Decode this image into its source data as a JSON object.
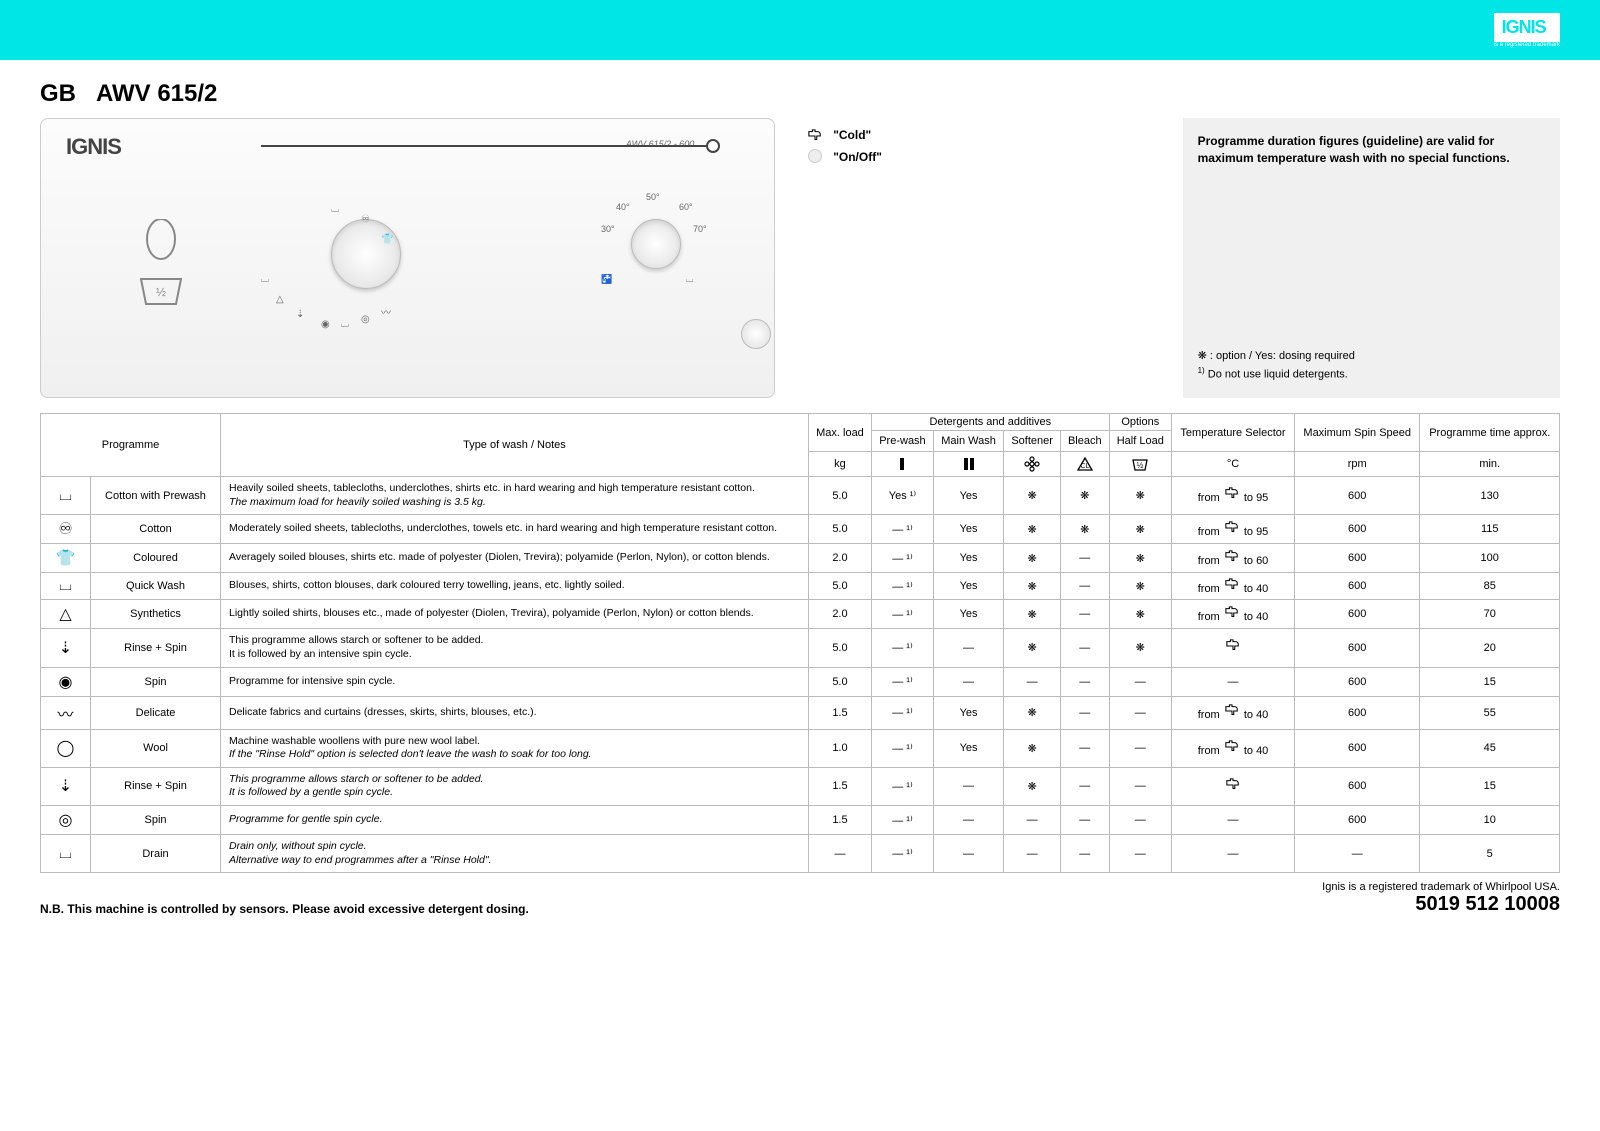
{
  "banner": {
    "logo": "IGNIS",
    "logo_sub": "is a registered trademark"
  },
  "title": {
    "country": "GB",
    "model": "AWV 615/2"
  },
  "panel": {
    "logo": "IGNIS",
    "model_label": "AWV 615/2 - 600",
    "temps": [
      "30°",
      "40°",
      "50°",
      "60°",
      "70°"
    ]
  },
  "legend": {
    "cold": "\"Cold\"",
    "onoff": "\"On/Off\""
  },
  "info": {
    "main": "Programme duration figures (guideline) are valid for maximum temperature wash with no special functions.",
    "note1": "❋ : option / Yes: dosing required",
    "note2_sup": "1)",
    "note2": " Do not use liquid detergents."
  },
  "headers": {
    "programme": "Programme",
    "type": "Type of wash / Notes",
    "maxload": "Max. load",
    "maxload_unit": "kg",
    "detergents_group": "Detergents and additives",
    "options_group": "Options",
    "prewash": "Pre-wash",
    "mainwash": "Main Wash",
    "softener": "Softener",
    "bleach": "Bleach",
    "halfload": "Half Load",
    "temp": "Temperature Selector",
    "temp_unit": "°C",
    "spin": "Maximum Spin Speed",
    "spin_unit": "rpm",
    "time": "Programme time approx.",
    "time_unit": "min."
  },
  "rows": [
    {
      "icon": "⌴",
      "name": "Cotton with Prewash",
      "notes": "Heavily soiled sheets, tablecloths, underclothes, shirts etc. in hard wearing and high temperature resistant cotton.",
      "notes_italic": "The maximum load for heavily soiled washing is 3.5 kg.",
      "load": "5.0",
      "prewash": "Yes ¹⁾",
      "mainwash": "Yes",
      "softener": "❋",
      "bleach": "❋",
      "halfload": "❋",
      "temp_from": "from",
      "temp_to": "to 95",
      "spin": "600",
      "time": "130"
    },
    {
      "icon": "♾",
      "name": "Cotton",
      "notes": "Moderately soiled sheets, tablecloths, underclothes, towels etc. in hard wearing and high temperature resistant cotton.",
      "notes_italic": "",
      "load": "5.0",
      "prewash": "— ¹⁾",
      "mainwash": "Yes",
      "softener": "❋",
      "bleach": "❋",
      "halfload": "❋",
      "temp_from": "from",
      "temp_to": "to 95",
      "spin": "600",
      "time": "115"
    },
    {
      "icon": "👕",
      "name": "Coloured",
      "notes": "Averagely soiled blouses, shirts etc. made of polyester (Diolen, Trevira); polyamide (Perlon, Nylon), or cotton blends.",
      "notes_italic": "",
      "load": "2.0",
      "prewash": "— ¹⁾",
      "mainwash": "Yes",
      "softener": "❋",
      "bleach": "—",
      "halfload": "❋",
      "temp_from": "from",
      "temp_to": "to 60",
      "spin": "600",
      "time": "100"
    },
    {
      "icon": "⌴",
      "name": "Quick Wash",
      "notes": "Blouses, shirts, cotton blouses, dark coloured terry towelling, jeans, etc. lightly soiled.",
      "notes_italic": "",
      "load": "5.0",
      "prewash": "— ¹⁾",
      "mainwash": "Yes",
      "softener": "❋",
      "bleach": "—",
      "halfload": "❋",
      "temp_from": "from",
      "temp_to": "to 40",
      "spin": "600",
      "time": "85"
    },
    {
      "icon": "△",
      "name": "Synthetics",
      "notes": "Lightly soiled shirts, blouses etc., made of polyester (Diolen, Trevira), polyamide (Perlon, Nylon) or cotton blends.",
      "notes_italic": "",
      "load": "2.0",
      "prewash": "— ¹⁾",
      "mainwash": "Yes",
      "softener": "❋",
      "bleach": "—",
      "halfload": "❋",
      "temp_from": "from",
      "temp_to": "to 40",
      "spin": "600",
      "time": "70"
    },
    {
      "icon": "⇣",
      "name": "Rinse + Spin",
      "notes": "This programme allows starch or softener to be added.\nIt is followed by an intensive spin cycle.",
      "notes_italic": "",
      "load": "5.0",
      "prewash": "— ¹⁾",
      "mainwash": "—",
      "softener": "❋",
      "bleach": "—",
      "halfload": "❋",
      "temp_from": "",
      "temp_to": "",
      "temp_cold": true,
      "spin": "600",
      "time": "20"
    },
    {
      "icon": "◉",
      "name": "Spin",
      "notes": "Programme for intensive spin cycle.",
      "notes_italic": "",
      "load": "5.0",
      "prewash": "— ¹⁾",
      "mainwash": "—",
      "softener": "—",
      "bleach": "—",
      "halfload": "—",
      "temp_from": "",
      "temp_to": "—",
      "spin": "600",
      "time": "15"
    },
    {
      "icon": "〰",
      "name": "Delicate",
      "notes": "Delicate fabrics and curtains (dresses, skirts, shirts, blouses, etc.).",
      "notes_italic": "",
      "load": "1.5",
      "prewash": "— ¹⁾",
      "mainwash": "Yes",
      "softener": "❋",
      "bleach": "—",
      "halfload": "—",
      "temp_from": "from",
      "temp_to": "to 40",
      "spin": "600",
      "time": "55"
    },
    {
      "icon": "◯",
      "name": "Wool",
      "notes": "Machine washable woollens with pure new wool label.",
      "notes_italic": "If the \"Rinse Hold\" option is selected don't leave the wash to soak for too long.",
      "load": "1.0",
      "prewash": "— ¹⁾",
      "mainwash": "Yes",
      "softener": "❋",
      "bleach": "—",
      "halfload": "—",
      "temp_from": "from",
      "temp_to": "to 40",
      "spin": "600",
      "time": "45"
    },
    {
      "icon": "⇣",
      "name": "Rinse + Spin",
      "notes": "",
      "notes_italic": "This programme allows starch or softener to be added.\nIt is followed by a gentle spin cycle.",
      "load": "1.5",
      "prewash": "— ¹⁾",
      "mainwash": "—",
      "softener": "❋",
      "bleach": "—",
      "halfload": "—",
      "temp_from": "",
      "temp_to": "",
      "temp_cold": true,
      "spin": "600",
      "time": "15"
    },
    {
      "icon": "◎",
      "name": "Spin",
      "notes": "",
      "notes_italic": "Programme for gentle spin cycle.",
      "load": "1.5",
      "prewash": "— ¹⁾",
      "mainwash": "—",
      "softener": "—",
      "bleach": "—",
      "halfload": "—",
      "temp_from": "",
      "temp_to": "—",
      "spin": "600",
      "time": "10"
    },
    {
      "icon": "⌴",
      "name": "Drain",
      "notes": "",
      "notes_italic": "Drain only, without spin cycle.\nAlternative way to end programmes after a \"Rinse Hold\".",
      "load": "—",
      "prewash": "— ¹⁾",
      "mainwash": "—",
      "softener": "—",
      "bleach": "—",
      "halfload": "—",
      "temp_from": "",
      "temp_to": "—",
      "spin": "—",
      "time": "5"
    }
  ],
  "footer": {
    "left": "N.B. This machine is controlled by sensors. Please avoid excessive detergent dosing.",
    "right_small": "Ignis is a registered trademark of Whirlpool USA.",
    "code": "5019 512 10008"
  }
}
